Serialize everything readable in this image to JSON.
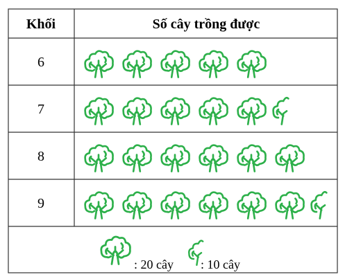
{
  "chart_data": {
    "type": "table",
    "columns": [
      "Khối",
      "Số cây trồng được"
    ],
    "categories": [
      "6",
      "7",
      "8",
      "9"
    ],
    "values": [
      100,
      110,
      120,
      130
    ],
    "symbol_counts": [
      5,
      5.5,
      6,
      6.5
    ],
    "legend": {
      "full_symbol_label": ": 20 cây",
      "half_symbol_label": ": 10 cây",
      "full_symbol_value": 20,
      "half_symbol_value": 10
    },
    "colors": {
      "tree": "#2db04a",
      "border": "#333333"
    }
  }
}
